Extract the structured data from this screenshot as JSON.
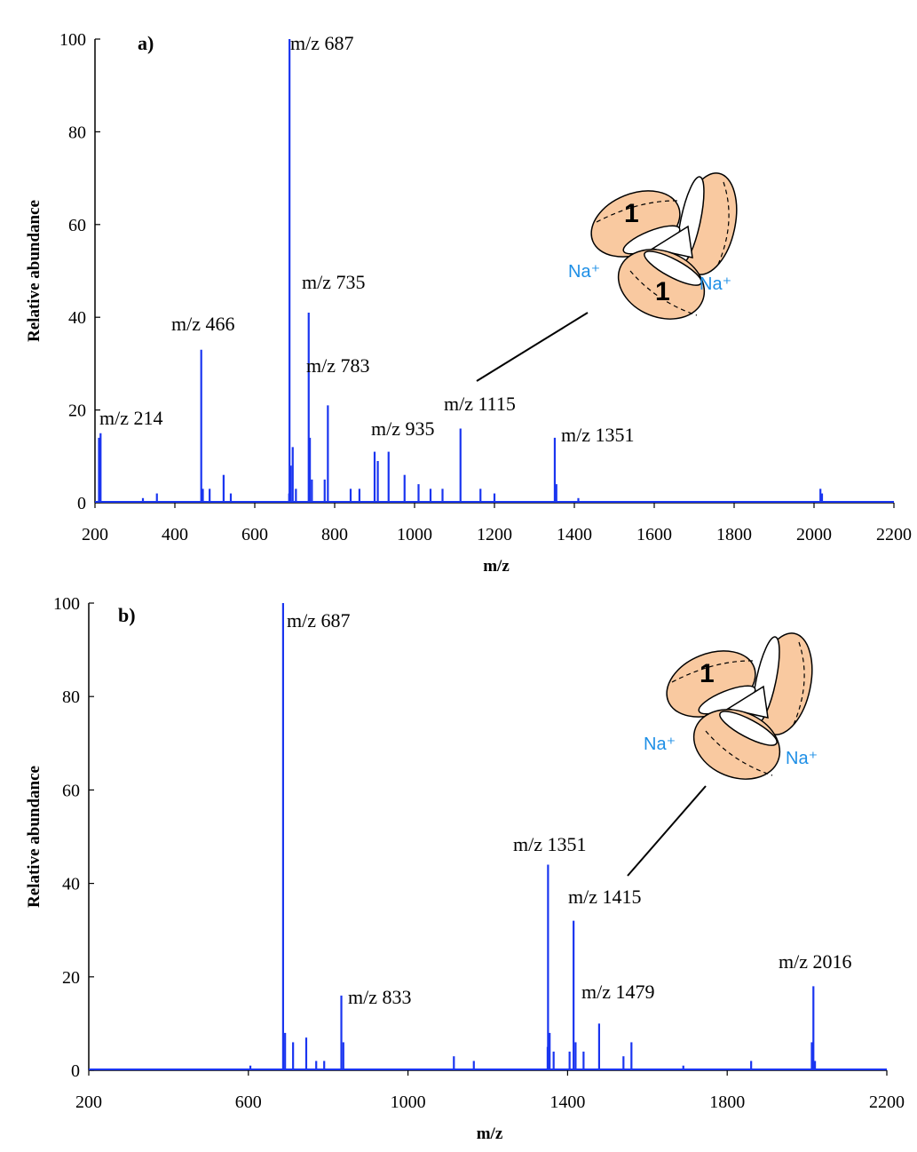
{
  "chart_data": [
    {
      "type": "spectrum",
      "panel_label": "a)",
      "xlabel": "m/z",
      "ylabel": "Relative abundance",
      "color": "#1a35f0",
      "x": [
        210,
        214,
        320,
        355,
        466,
        470,
        487,
        522,
        540,
        686,
        687,
        690,
        695,
        703,
        735,
        738,
        743,
        775,
        783,
        840,
        862,
        900,
        908,
        935,
        975,
        1010,
        1040,
        1070,
        1115,
        1165,
        1200,
        1351,
        1355,
        1410,
        2016,
        2020
      ],
      "values": [
        14,
        15,
        1,
        2,
        33,
        3,
        3,
        6,
        2,
        2,
        100,
        8,
        12,
        3,
        41,
        14,
        5,
        5,
        21,
        3,
        3,
        11,
        9,
        11,
        6,
        4,
        3,
        3,
        16,
        3,
        2,
        14,
        4,
        1,
        3,
        2
      ],
      "point_labels": [
        null,
        "m/z 214",
        null,
        null,
        "m/z 466",
        null,
        null,
        null,
        null,
        null,
        "m/z 687",
        null,
        null,
        null,
        "m/z 735",
        null,
        null,
        null,
        "m/z 783",
        null,
        null,
        null,
        null,
        "m/z 935",
        null,
        null,
        null,
        null,
        "m/z 1115",
        null,
        null,
        "m/z 1351",
        null,
        null,
        null,
        null
      ],
      "xlim": [
        200,
        2200
      ],
      "xticks": [
        200,
        400,
        600,
        800,
        1000,
        1200,
        1400,
        1600,
        1800,
        2000,
        2200
      ],
      "ylim": [
        0,
        100
      ],
      "yticks": [
        0,
        20,
        40,
        60,
        80,
        100
      ],
      "inset_labels": [
        "1",
        "1",
        "Na⁺",
        "Na⁺"
      ]
    },
    {
      "type": "spectrum",
      "panel_label": "b)",
      "xlabel": "m/z",
      "ylabel": "Relative abundance",
      "color": "#1a35f0",
      "x": [
        605,
        687,
        692,
        712,
        745,
        770,
        790,
        833,
        838,
        1115,
        1165,
        1350,
        1351,
        1355,
        1365,
        1405,
        1415,
        1420,
        1440,
        1479,
        1540,
        1560,
        1690,
        1860,
        2012,
        2016,
        2020
      ],
      "values": [
        1,
        100,
        8,
        6,
        7,
        2,
        2,
        16,
        6,
        3,
        2,
        5,
        44,
        8,
        4,
        4,
        32,
        6,
        4,
        10,
        3,
        6,
        1,
        2,
        6,
        18,
        2
      ],
      "point_labels": [
        null,
        "m/z 687",
        null,
        null,
        null,
        null,
        null,
        "m/z 833",
        null,
        null,
        null,
        null,
        "m/z 1351",
        null,
        null,
        null,
        "m/z 1415",
        null,
        null,
        "m/z 1479",
        null,
        null,
        null,
        null,
        null,
        "m/z 2016",
        null
      ],
      "xlim": [
        200,
        2200
      ],
      "xticks": [
        200,
        600,
        1000,
        1400,
        1800,
        2200
      ],
      "ylim": [
        0,
        100
      ],
      "yticks": [
        0,
        20,
        40,
        60,
        80,
        100
      ],
      "inset_labels": [
        "1",
        "Na⁺",
        "Na⁺"
      ]
    }
  ]
}
